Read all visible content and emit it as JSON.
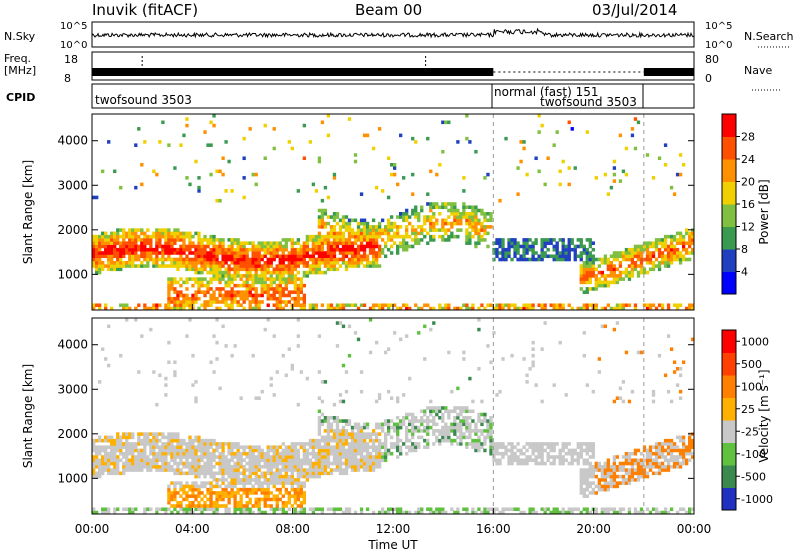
{
  "header": {
    "site": "Inuvik (fitACF)",
    "beam": "Beam 00",
    "date": "03/Jul/2014"
  },
  "sky_panel": {
    "left_label": "N.Sky",
    "left_ticks": [
      "10^5",
      "10^0"
    ],
    "right_ticks": [
      "10^5",
      "10^0"
    ],
    "right_label": "N.Search"
  },
  "freq_panel": {
    "left_label_1": "Freq.",
    "left_label_2": "[MHz]",
    "left_ticks": [
      "18",
      "8"
    ],
    "right_ticks": [
      "80",
      "0"
    ],
    "right_label": "Nave"
  },
  "cpid_panel": {
    "label": "CPID",
    "segments": [
      {
        "name": "twofsound 3503",
        "start_hour": 0,
        "end_hour": 16
      },
      {
        "name": "normal (fast) 151",
        "start_hour": 16,
        "end_hour": 22
      },
      {
        "name": "twofsound 3503",
        "start_hour": 16,
        "end_hour": 22
      }
    ]
  },
  "chart_data": [
    {
      "type": "heatmap",
      "name": "power",
      "ylabel": "Slant Range [km]",
      "xlim_hours": [
        0,
        24
      ],
      "ylim": [
        200,
        4600
      ],
      "yticks": [
        1000,
        2000,
        3000,
        4000
      ],
      "colorbar": {
        "label": "Power [dB]",
        "ticks": [
          "4",
          "8",
          "12",
          "16",
          "20",
          "24",
          "28"
        ],
        "colors": [
          "#0000ff",
          "#2040c0",
          "#3a9a50",
          "#80c040",
          "#f0d000",
          "#ff9000",
          "#ff5000",
          "#ff0000"
        ]
      }
    },
    {
      "type": "heatmap",
      "name": "velocity",
      "ylabel": "Slant Range [km]",
      "xlim_hours": [
        0,
        24
      ],
      "ylim": [
        200,
        4600
      ],
      "yticks": [
        1000,
        2000,
        3000,
        4000
      ],
      "xticks": [
        "00:00",
        "04:00",
        "08:00",
        "12:00",
        "16:00",
        "20:00",
        "00:00"
      ],
      "xlabel": "Time UT",
      "colorbar": {
        "label": "Velocity [m s⁻¹]",
        "ticks": [
          "1000",
          "500",
          "100",
          "25",
          "-25",
          "-100",
          "-500",
          "-1000"
        ],
        "colors": [
          "#2030c0",
          "#3a8a50",
          "#60c040",
          "#c8c8c8",
          "#ffb000",
          "#ff8000",
          "#ff4000",
          "#ff0000"
        ]
      }
    }
  ]
}
